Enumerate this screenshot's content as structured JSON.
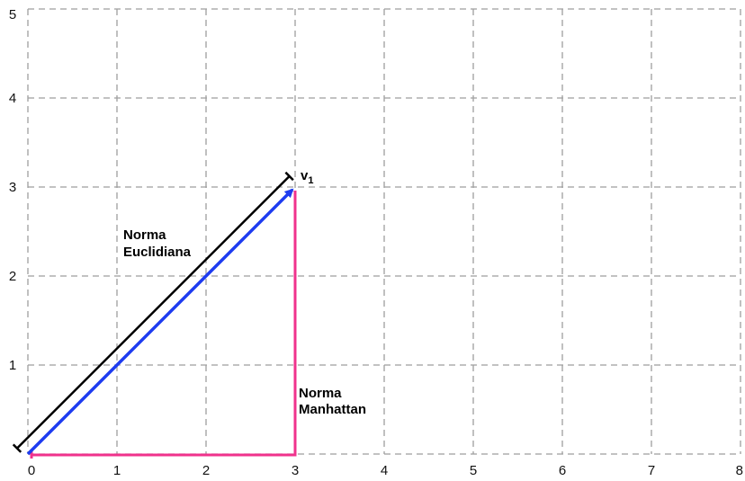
{
  "chart_data": {
    "type": "diagram",
    "xlim": [
      0,
      8
    ],
    "ylim": [
      0,
      5
    ],
    "grid": "dashed",
    "x_ticks": [
      "0",
      "1",
      "2",
      "3",
      "4",
      "5",
      "6",
      "7",
      "8"
    ],
    "y_ticks": [
      "1",
      "2",
      "3",
      "4",
      "5"
    ],
    "vector": {
      "label_main": "v",
      "label_sub": "1",
      "x": 3,
      "y": 3,
      "color": "#1e3cf0"
    },
    "euclidean": {
      "label_line1": "Norma",
      "label_line2": "Euclidiana",
      "color": "#000000"
    },
    "manhattan": {
      "label_line1": "Norma",
      "label_line2": "Manhattan",
      "color": "#f0328c"
    }
  }
}
